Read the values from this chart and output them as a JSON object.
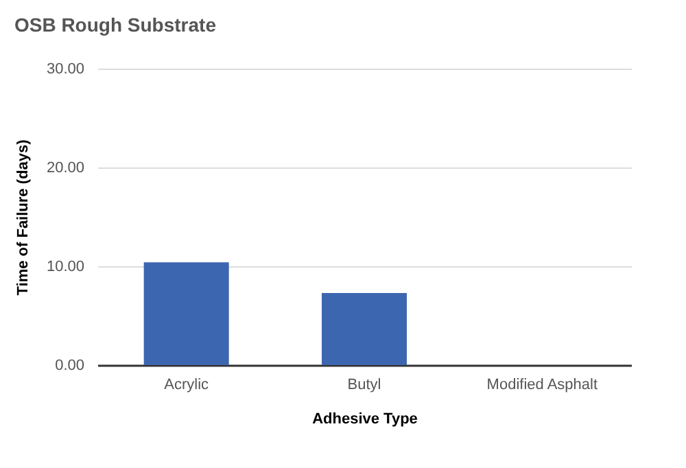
{
  "chart_data": {
    "type": "bar",
    "title": "OSB Rough Substrate",
    "xlabel": "Adhesive Type",
    "ylabel": "Time of Failure (days)",
    "categories": [
      "Acrylic",
      "Butyl",
      "Modified Asphalt"
    ],
    "series": [
      {
        "color": "#3d66b0",
        "values": [
          10.4,
          7.3,
          0
        ]
      }
    ],
    "ylim": [
      0,
      30
    ],
    "yticks": [
      {
        "value": 0,
        "label": "0.00"
      },
      {
        "value": 10,
        "label": "10.00"
      },
      {
        "value": 20,
        "label": "20.00"
      },
      {
        "value": 30,
        "label": "30.00"
      }
    ],
    "grid": "y",
    "legend": false
  }
}
